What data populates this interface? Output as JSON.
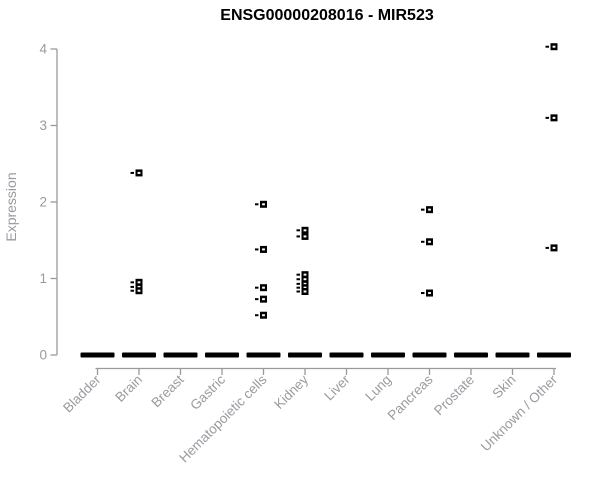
{
  "chart_data": {
    "type": "scatter",
    "title": "ENSG00000208016 - MIR523",
    "xlabel": "",
    "ylabel": "Expression",
    "ylim": [
      0,
      4
    ],
    "yticks": [
      0,
      1,
      2,
      3,
      4
    ],
    "grid": false,
    "legend": false,
    "marker": "open-square-with-left-dash",
    "categories": [
      "Bladder",
      "Brain",
      "Breast",
      "Gastric",
      "Hematopoietic cells",
      "Kidney",
      "Liver",
      "Lung",
      "Pancreas",
      "Prostate",
      "Skin",
      "Unknown / Other"
    ],
    "series": [
      {
        "category": "Bladder",
        "values": []
      },
      {
        "category": "Brain",
        "values": [
          2.38,
          0.95,
          0.89,
          0.84
        ]
      },
      {
        "category": "Breast",
        "values": []
      },
      {
        "category": "Gastric",
        "values": []
      },
      {
        "category": "Hematopoietic cells",
        "values": [
          1.97,
          1.38,
          0.88,
          0.73,
          0.52
        ]
      },
      {
        "category": "Kidney",
        "values": [
          1.63,
          1.55,
          1.05,
          0.99,
          0.93,
          0.88,
          0.83
        ]
      },
      {
        "category": "Liver",
        "values": []
      },
      {
        "category": "Lung",
        "values": []
      },
      {
        "category": "Pancreas",
        "values": [
          1.9,
          1.48,
          0.81
        ]
      },
      {
        "category": "Prostate",
        "values": []
      },
      {
        "category": "Skin",
        "values": []
      },
      {
        "category": "Unknown / Other",
        "values": [
          4.03,
          3.1,
          1.4
        ]
      }
    ],
    "baseline": {
      "value": 0,
      "all_categories": true,
      "note": "dense overlapping points at expression 0 in every category, drawn as a thick black dash"
    },
    "colors": {
      "points": "#000000",
      "axis_line": "#9a9a9a",
      "tick_labels": "#9a9aa0",
      "title": "#000000",
      "background": "#ffffff"
    }
  }
}
